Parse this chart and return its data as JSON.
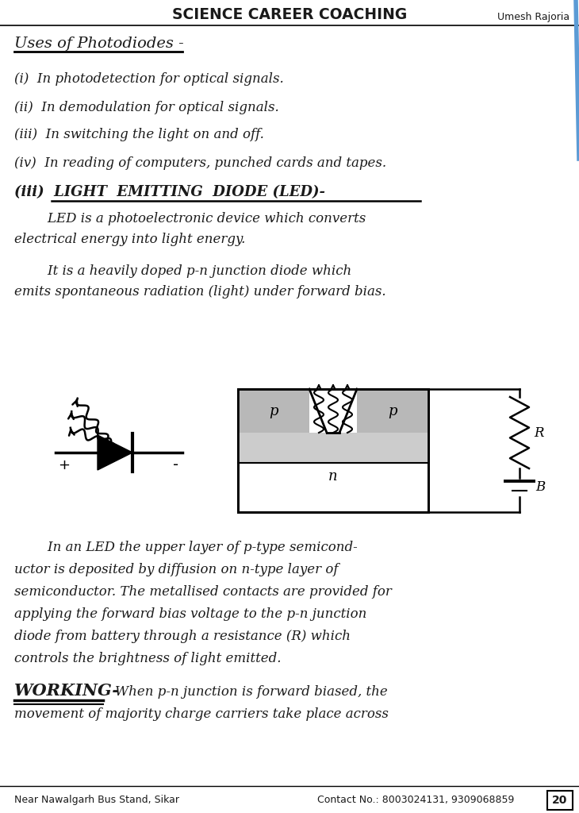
{
  "header_title": "SCIENCE CAREER COACHING",
  "header_sub": "Umesh Rajoria",
  "footer_left": "Near Nawalgarh Bus Stand, Sikar",
  "footer_right": "Contact No.: 8003024131, 9309068859",
  "footer_page": "20",
  "bg_color": "#ffffff",
  "text_color": "#1a1a1a",
  "section1_title": "Uses of Photodiodes -",
  "section1_items": [
    "(i)  In photodetection for optical signals.",
    "(ii)  In demodulation for optical signals.",
    "(iii)  In switching the light on and off.",
    "(iv)  In reading of computers, punched cards and tapes."
  ],
  "section2_title": "(iii)  LIGHT  EMITTING  DIODE (LED)-",
  "section2_para1_lines": [
    "        LED is a photoelectronic device which converts",
    "electrical energy into light energy."
  ],
  "section2_para2_lines": [
    "        It is a heavily doped p-n junction diode which",
    "emits spontaneous radiation (light) under forward bias."
  ],
  "section3_para_lines": [
    "        In an LED the upper layer of p-type semicond-",
    "uctor is deposited by diffusion on n-type layer of",
    "semiconductor. The metallised contacts are provided for",
    "applying the forward bias voltage to the p-n junction",
    "diode from battery through a resistance (R) which",
    "controls the brightness of light emitted."
  ],
  "section4_title": "WORKING-",
  "section4_para_lines": [
    "        When p-n junction is forward biased, the",
    "movement of majority charge carriers take place across"
  ]
}
